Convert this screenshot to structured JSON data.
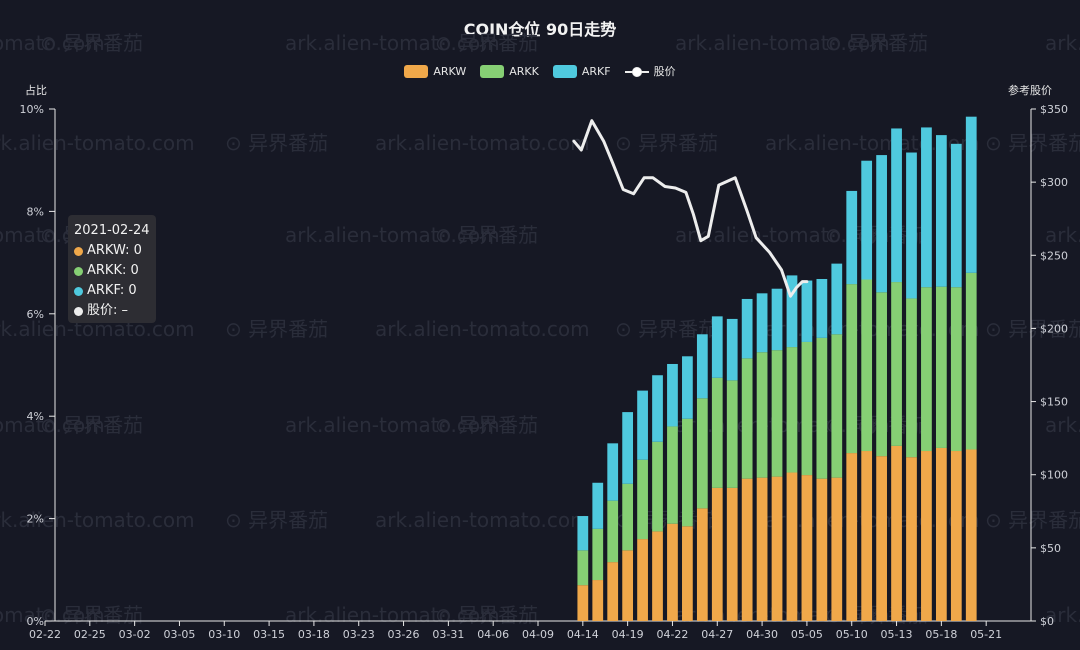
{
  "chart_data": {
    "type": "bar",
    "title": "COIN仓位 90日走势",
    "ylabel": "占比",
    "y2label": "参考股价",
    "ylim": [
      0,
      10
    ],
    "y2lim": [
      0,
      350
    ],
    "yticks": [
      "0%",
      "2%",
      "4%",
      "6%",
      "8%",
      "10%"
    ],
    "y2ticks": [
      "$0",
      "$50",
      "$100",
      "$150",
      "$200",
      "$250",
      "$300",
      "$350"
    ],
    "xticks": [
      "02-22",
      "02-25",
      "03-02",
      "03-05",
      "03-10",
      "03-15",
      "03-18",
      "03-23",
      "03-26",
      "03-31",
      "04-06",
      "04-09",
      "04-14",
      "04-19",
      "04-22",
      "04-27",
      "04-30",
      "05-05",
      "05-10",
      "05-13",
      "05-18",
      "05-21"
    ],
    "legend": [
      "ARKW",
      "ARKK",
      "ARKF",
      "股价"
    ],
    "colors": {
      "ARKW": "#f0a84a",
      "ARKK": "#86cf74",
      "ARKF": "#4fc9de",
      "股价": "#ededed"
    },
    "stacked_bars": {
      "x_start": 35.5,
      "ARKW": [
        0.7,
        0.8,
        1.15,
        1.38,
        1.6,
        1.75,
        1.9,
        1.85,
        2.2,
        2.6,
        2.6,
        2.78,
        2.8,
        2.82,
        2.9,
        2.85,
        2.78,
        2.8,
        3.28,
        3.32,
        3.22,
        3.42,
        3.2,
        3.32,
        3.38,
        3.32,
        3.35
      ],
      "ARKK": [
        0.68,
        1.0,
        1.2,
        1.3,
        1.55,
        1.75,
        1.9,
        2.1,
        2.15,
        2.15,
        2.1,
        2.35,
        2.45,
        2.47,
        2.45,
        2.6,
        2.75,
        2.8,
        3.3,
        3.35,
        3.2,
        3.2,
        3.1,
        3.2,
        3.15,
        3.2,
        3.45
      ],
      "ARKF": [
        0.67,
        0.9,
        1.12,
        1.4,
        1.35,
        1.3,
        1.22,
        1.22,
        1.25,
        1.2,
        1.2,
        1.16,
        1.15,
        1.2,
        1.4,
        1.2,
        1.15,
        1.38,
        1.82,
        2.32,
        2.68,
        3.0,
        2.85,
        3.12,
        2.96,
        2.8,
        3.05
      ]
    },
    "price_line": {
      "x": [
        35.4,
        35.9,
        36.6,
        37.4,
        38.0,
        38.7,
        39.4,
        40.1,
        40.7,
        41.5,
        42.2,
        42.9,
        43.4,
        43.9,
        44.4,
        45.1,
        46.2,
        47.0,
        47.6,
        48.5,
        49.3,
        49.9,
        50.3,
        50.7,
        51.0
      ],
      "y": [
        328,
        322,
        342,
        328,
        313,
        295,
        292,
        303,
        303,
        297,
        296,
        293,
        278,
        260,
        263,
        298,
        303,
        280,
        262,
        252,
        240,
        222,
        228,
        232,
        232
      ]
    }
  },
  "tooltip": {
    "date": "2021-02-24",
    "rows": [
      "ARKW: 0",
      "ARKK: 0",
      "ARKF: 0",
      "股价: –"
    ]
  },
  "watermarks": [
    "ark.alien-tomato.com",
    "⊙ 异界番茄"
  ]
}
